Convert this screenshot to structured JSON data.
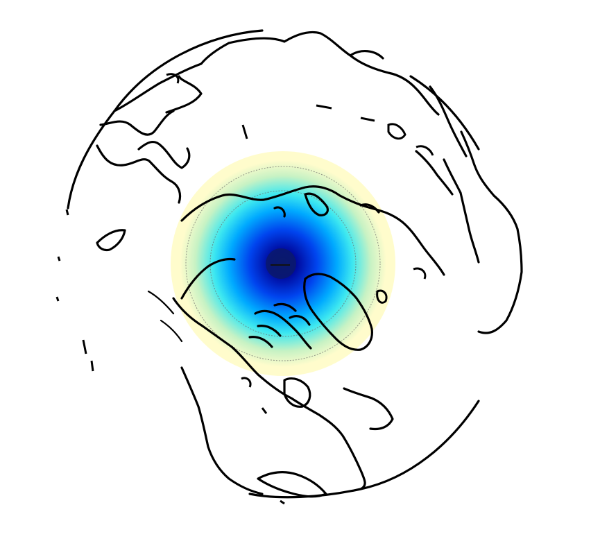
{
  "map": {
    "projection": "orthographic",
    "view": "north-polar",
    "field": {
      "type": "radial-gradient",
      "colormap": [
        "#fffccc",
        "#c7f2c4",
        "#3ee8f0",
        "#00aaff",
        "#0044ee",
        "#000a9e",
        "#0b1a6b"
      ],
      "center_description": "north pole",
      "center_marker": "dark-blue"
    },
    "coastline_color": "#000000",
    "background_color": "#ffffff"
  }
}
